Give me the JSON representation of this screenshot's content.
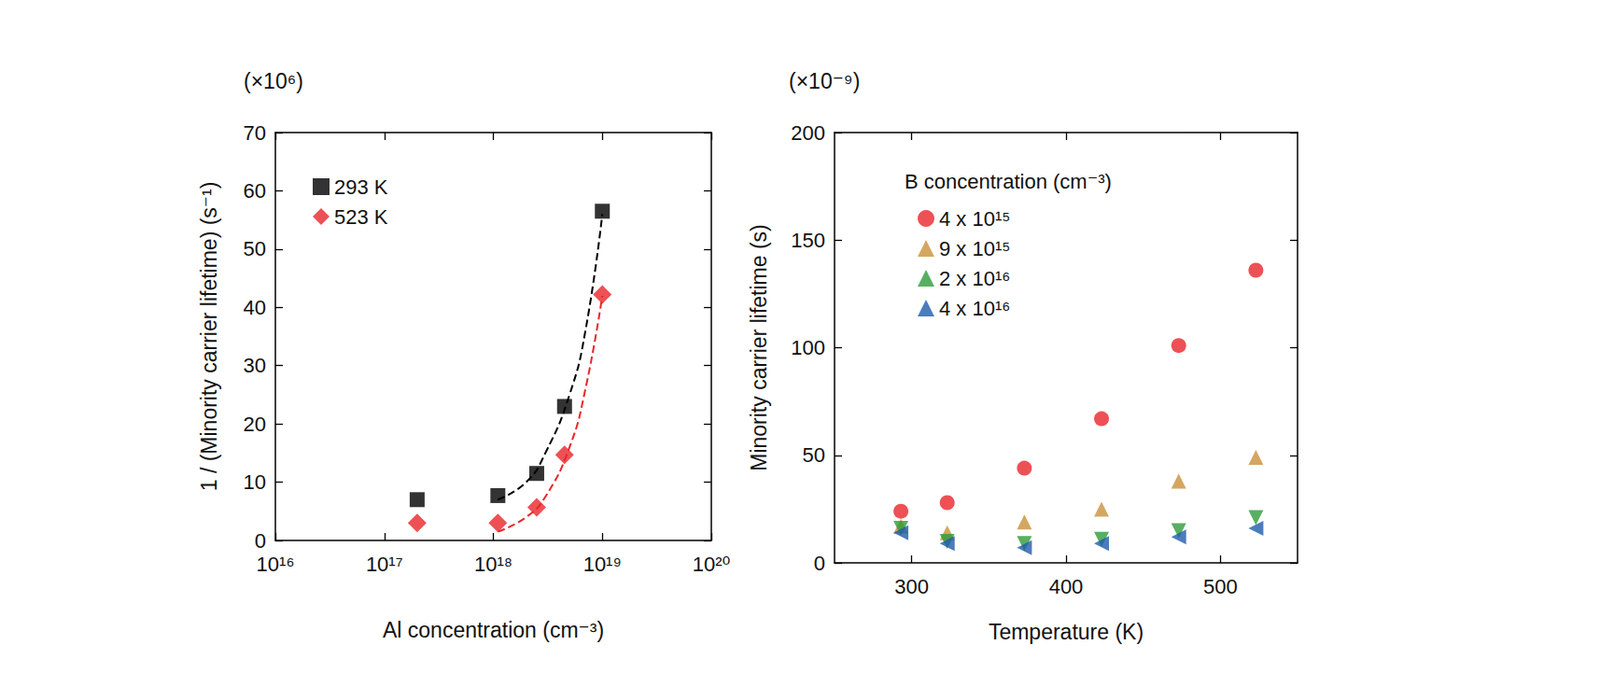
{
  "chart_data": [
    {
      "type": "scatter",
      "y_multiplier": "(×10⁶)",
      "x_label": "Al concentration (cm⁻³)",
      "y_label": "1 / (Minority carrier lifetime) (s⁻¹)",
      "log": "x",
      "xlim": [
        1e+16,
        1e+20
      ],
      "xticks": [
        {
          "value": 1e+16,
          "label": "10¹⁶"
        },
        {
          "value": 1e+17,
          "label": "10¹⁷"
        },
        {
          "value": 1e+18,
          "label": "10¹⁸"
        },
        {
          "value": 1e+19,
          "label": "10¹⁹"
        },
        {
          "value": 1e+20,
          "label": "10²⁰"
        }
      ],
      "ylim": [
        0,
        70
      ],
      "yticks": [
        0,
        10,
        20,
        30,
        40,
        50,
        60,
        70
      ],
      "grid": false,
      "legend": "upper left",
      "series": [
        {
          "name": "293 K",
          "color": "#000000",
          "marker": "square",
          "x": [
            2e+17,
            1.1e+18,
            2.5e+18,
            4.5e+18,
            1e+19
          ],
          "values": [
            7,
            7.7,
            11.5,
            23,
            56.5
          ],
          "fit": {
            "line_style": "dashed",
            "x": [
              1.1e+18,
              2e+18,
              3e+18,
              5e+18,
              7e+18,
              1e+19
            ],
            "values": [
              7,
              10,
              15,
              25,
              36,
              56
            ]
          }
        },
        {
          "name": "523 K",
          "color": "#e8262a",
          "marker": "diamond",
          "x": [
            2e+17,
            1.1e+18,
            2.5e+18,
            4.5e+18,
            1e+19
          ],
          "values": [
            3,
            3,
            5.7,
            14.7,
            42.2
          ],
          "fit": {
            "line_style": "dashed",
            "x": [
              1.1e+18,
              2e+18,
              3e+18,
              5e+18,
              7e+18,
              1e+19
            ],
            "values": [
              1.5,
              4,
              7.5,
              16,
              26,
              42
            ]
          }
        }
      ]
    },
    {
      "type": "scatter",
      "y_multiplier": "(×10⁻⁹)",
      "x_label": "Temperature (K)",
      "y_label": "Minority carrier lifetime (s)",
      "xlim": [
        250,
        550
      ],
      "xticks": [
        300,
        400,
        500
      ],
      "ylim": [
        0,
        200
      ],
      "yticks": [
        0,
        50,
        100,
        150,
        200
      ],
      "grid": false,
      "legend": "upper left",
      "legend_title": "B concentration (cm⁻³)",
      "series": [
        {
          "name": "4 x 10¹⁵",
          "color": "#e8262a",
          "marker": "circle",
          "x": [
            293,
            323,
            373,
            423,
            473,
            523
          ],
          "values": [
            24,
            28,
            44,
            67,
            101,
            136
          ]
        },
        {
          "name": "9 x 10¹⁵",
          "color": "#c8913a",
          "marker": "triangle-up",
          "x": [
            293,
            323,
            373,
            423,
            473,
            523
          ],
          "values": [
            17,
            14,
            19,
            25,
            38,
            49
          ]
        },
        {
          "name": "2 x 10¹⁶",
          "color": "#2e9b3a",
          "marker": "triangle-down",
          "x": [
            293,
            323,
            373,
            423,
            473,
            523
          ],
          "values": [
            16,
            10,
            9,
            11,
            15,
            21
          ]
        },
        {
          "name": "4 x 10¹⁶",
          "color": "#1f5bab",
          "marker": "triangle-left",
          "x": [
            293,
            323,
            373,
            423,
            473,
            523
          ],
          "values": [
            14,
            9,
            7,
            9,
            12,
            16
          ]
        }
      ]
    }
  ]
}
